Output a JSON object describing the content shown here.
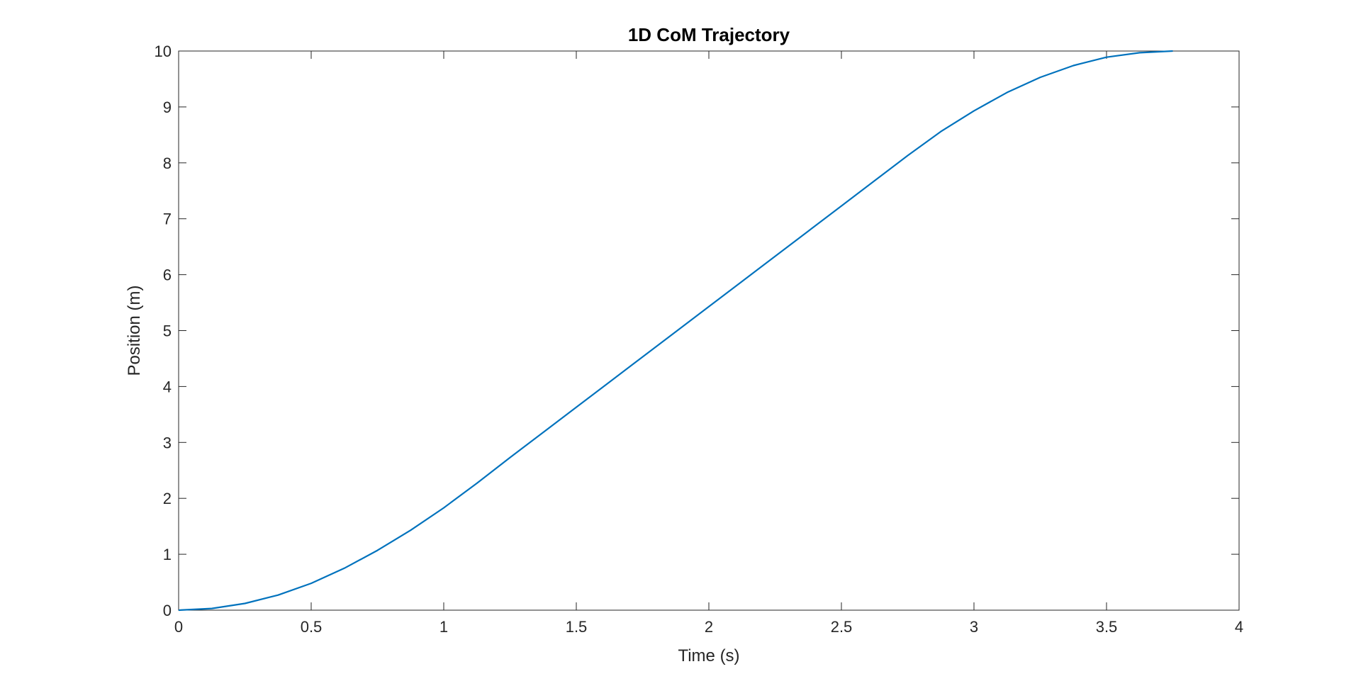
{
  "chart_data": {
    "type": "line",
    "title": "1D CoM Trajectory",
    "xlabel": "Time (s)",
    "ylabel": "Position (m)",
    "xlim": [
      0,
      4
    ],
    "ylim": [
      0,
      10
    ],
    "xticks": [
      0,
      0.5,
      1,
      1.5,
      2,
      2.5,
      3,
      3.5,
      4
    ],
    "xtick_labels": [
      "0",
      "0.5",
      "1",
      "1.5",
      "2",
      "2.5",
      "3",
      "3.5",
      "4"
    ],
    "yticks": [
      0,
      1,
      2,
      3,
      4,
      5,
      6,
      7,
      8,
      9,
      10
    ],
    "ytick_labels": [
      "0",
      "1",
      "2",
      "3",
      "4",
      "5",
      "6",
      "7",
      "8",
      "9",
      "10"
    ],
    "grid": false,
    "series": [
      {
        "name": "CoM position",
        "color": "#0072BD",
        "x": [
          0,
          0.125,
          0.25,
          0.375,
          0.5,
          0.625,
          0.75,
          0.875,
          1.0,
          1.125,
          1.25,
          1.375,
          1.5,
          1.625,
          1.75,
          1.875,
          2.0,
          2.125,
          2.25,
          2.375,
          2.5,
          2.625,
          2.75,
          2.875,
          3.0,
          3.125,
          3.25,
          3.375,
          3.5,
          3.625,
          3.75
        ],
        "y": [
          0,
          0.03,
          0.12,
          0.27,
          0.48,
          0.75,
          1.07,
          1.43,
          1.83,
          2.27,
          2.73,
          3.18,
          3.63,
          4.08,
          4.53,
          4.98,
          5.43,
          5.88,
          6.33,
          6.78,
          7.23,
          7.68,
          8.13,
          8.56,
          8.93,
          9.26,
          9.53,
          9.74,
          9.89,
          9.97,
          10.0
        ]
      }
    ]
  }
}
